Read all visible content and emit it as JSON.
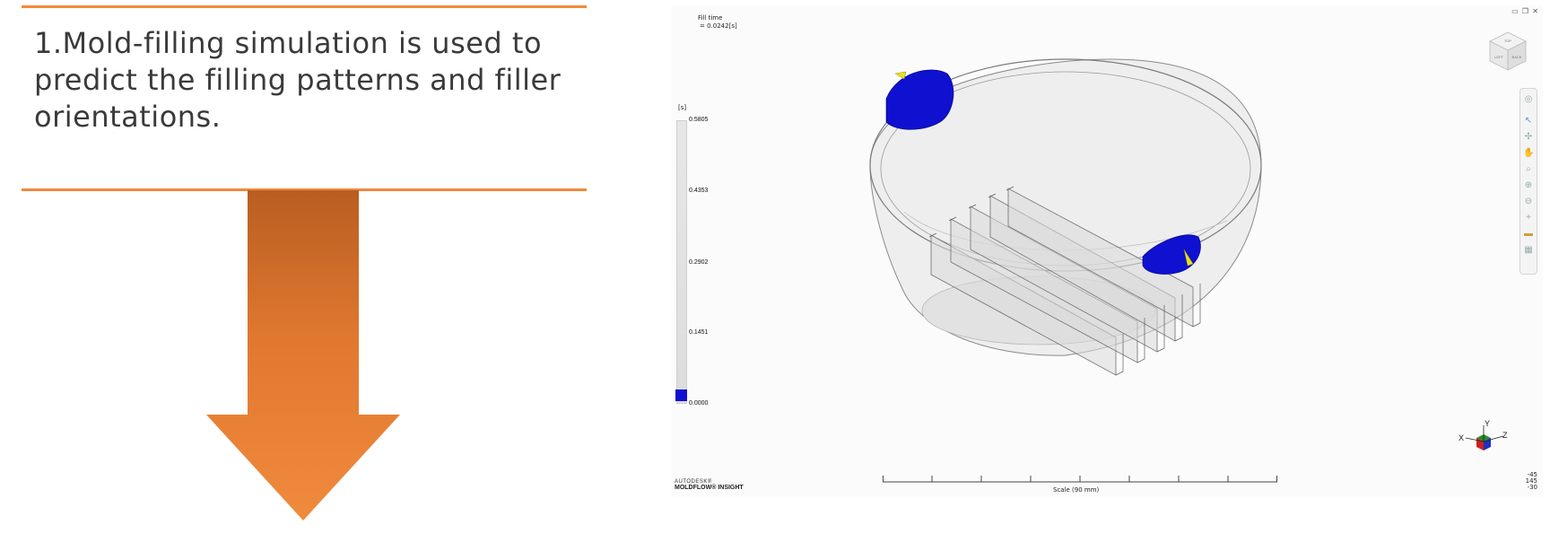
{
  "slide": {
    "text": "1.Mold-filling simulation is used to predict the filling patterns and filler orientations.",
    "accent_color": "#f08a3c"
  },
  "viewer": {
    "result_title": "Fill time",
    "result_value": "= 0.0242[s]",
    "legend_unit": "[s]",
    "legend_ticks": [
      "0.5805",
      "0.4353",
      "0.2902",
      "0.1451",
      "0.0000"
    ],
    "window_controls": "▭ ❐ ✕",
    "viewcube_labels": [
      "TOP",
      "BACK",
      "LEFT"
    ],
    "scale_label": "Scale (90 mm)",
    "brand_line1": "AUTODESK®",
    "brand_line2": "MOLDFLOW® INSIGHT",
    "rotation_values": [
      "-45",
      "145",
      "-30"
    ],
    "axis_labels": {
      "x": "X",
      "y": "Y",
      "z": "Z"
    },
    "toolbar_icons": [
      "home-icon",
      "select-icon",
      "rotate-icon",
      "pan-hand-icon",
      "zoom-rect-icon",
      "zoom-in-icon",
      "zoom-out-icon",
      "measure-icon",
      "ruler-icon",
      "print-icon"
    ],
    "fill_color": "#1010d0",
    "gate_color": "#e8e020"
  }
}
